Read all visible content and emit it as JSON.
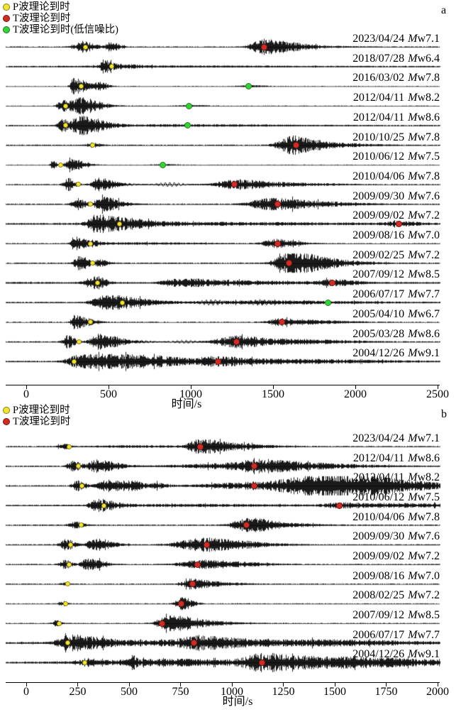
{
  "figure": {
    "background": "#ffffff",
    "waveform_color": "#000000",
    "p_marker_color": "#f5e32e",
    "mag_prefix_italic": "M",
    "mag_prefix_sub": "w"
  },
  "packet_format": "[center_time_s, width_s, amplitude_px, optional_decay_s]",
  "chart_data": [
    {
      "id": "a",
      "type": "line",
      "panel_letter": "a",
      "xlabel": "时间/s",
      "xlim": [
        0,
        2500
      ],
      "xticks": [
        0,
        500,
        1000,
        1500,
        2000,
        2500
      ],
      "grid": false,
      "legend_position": "top-left",
      "legend": [
        {
          "label": "P波理论到时",
          "color": "#f5e32e"
        },
        {
          "label": "T波理论到时",
          "color": "#d12b24"
        },
        {
          "label": "T波理论到时(低信噪比)",
          "color": "#35d435"
        }
      ],
      "traces": [
        {
          "label": "2023/04/24 Mw7.1",
          "date": "2023/04/24",
          "mw": "7.1",
          "p_s": 358,
          "t_s": 1448,
          "t_color": "#d12b24",
          "noise": 0.7,
          "packets": [
            [
              350,
              40,
              8
            ],
            [
              513,
              25,
              7
            ],
            [
              1444,
              55,
              10,
              120
            ],
            [
              1600,
              120,
              3
            ]
          ]
        },
        {
          "label": "2018/07/28 Mw6.4",
          "date": "2018/07/28",
          "mw": "6.4",
          "p_s": 521,
          "t_s": null,
          "t_color": null,
          "noise": 0.9,
          "packets": [
            [
              470,
              18,
              8
            ],
            [
              545,
              60,
              3
            ],
            [
              900,
              400,
              0.8
            ]
          ]
        },
        {
          "label": "2016/03/02 Mw7.8",
          "date": "2016/03/02",
          "mw": "7.8",
          "p_s": 332,
          "t_s": 1353,
          "t_color": "#35d435",
          "noise": 0.45,
          "packets": [
            [
              280,
              12,
              11,
              90
            ],
            [
              453,
              22,
              5
            ],
            [
              1353,
              45,
              1.2
            ]
          ]
        },
        {
          "label": "2012/04/11 Mw8.2",
          "date": "2012/04/11",
          "mw": "8.2",
          "p_s": 241,
          "t_s": 991,
          "t_color": "#35d435",
          "noise": 0.5,
          "packets": [
            [
              216,
              20,
              8
            ],
            [
              323,
              40,
              12,
              100
            ],
            [
              991,
              50,
              1
            ]
          ]
        },
        {
          "label": "2012/04/11 Mw8.6",
          "date": "2012/04/11",
          "mw": "8.6",
          "p_s": 241,
          "t_s": 982,
          "t_color": "#35d435",
          "noise": 0.8,
          "packets": [
            [
              216,
              20,
              8
            ],
            [
              328,
              45,
              13,
              120
            ],
            [
              950,
              350,
              1.2
            ]
          ]
        },
        {
          "label": "2010/10/25 Mw7.8",
          "date": "2010/10/25",
          "mw": "7.8",
          "p_s": 401,
          "t_s": 1642,
          "t_color": "#d12b24",
          "noise": 0.8,
          "packets": [
            [
              401,
              25,
              3
            ],
            [
              1543,
              40,
              4
            ],
            [
              1635,
              55,
              11,
              100
            ],
            [
              1830,
              120,
              3
            ]
          ]
        },
        {
          "label": "2010/06/12 Mw7.5",
          "date": "2010/06/12",
          "mw": "7.5",
          "p_s": 211,
          "t_s": 828,
          "t_color": "#35d435",
          "noise": 0.45,
          "packets": [
            [
              164,
              12,
              5
            ],
            [
              259,
              18,
              10,
              70
            ],
            [
              828,
              40,
              1
            ]
          ]
        },
        {
          "label": "2010/04/06 Mw7.8",
          "date": "2010/04/06",
          "mw": "7.8",
          "p_s": 315,
          "t_s": 1263,
          "t_color": "#d12b24",
          "noise": 0.7,
          "packets": [
            [
              250,
              22,
              9
            ],
            [
              437,
              30,
              9,
              80
            ],
            [
              1255,
              70,
              7,
              150
            ],
            [
              1600,
              150,
              2
            ]
          ],
          "rings": [
            [
              500,
              1150,
              2.5
            ]
          ]
        },
        {
          "label": "2009/09/30 Mw7.6",
          "date": "2009/09/30",
          "mw": "7.6",
          "p_s": 388,
          "t_s": 1530,
          "t_color": "#d12b24",
          "noise": 0.8,
          "packets": [
            [
              310,
              25,
              8
            ],
            [
              462,
              35,
              10,
              90
            ],
            [
              1480,
              90,
              8,
              150
            ],
            [
              1780,
              120,
              3
            ]
          ]
        },
        {
          "label": "2009/09/02 Mw7.2",
          "date": "2009/09/02",
          "mw": "7.2",
          "p_s": 565,
          "t_s": 2267,
          "t_color": "#d12b24",
          "noise": 1.1,
          "packets": [
            [
              414,
              35,
              12,
              200
            ],
            [
              1100,
              450,
              1.8
            ],
            [
              2267,
              60,
              3
            ]
          ]
        },
        {
          "label": "2009/08/16 Mw7.0",
          "date": "2009/08/16",
          "mw": "7.0",
          "p_s": 388,
          "t_s": 1530,
          "t_color": "#d12b24",
          "noise": 0.6,
          "packets": [
            [
              297,
              18,
              9,
              90
            ],
            [
              700,
              200,
              1.3
            ],
            [
              1515,
              55,
              6,
              110
            ]
          ]
        },
        {
          "label": "2009/02/25 Mw7.2",
          "date": "2009/02/25",
          "mw": "7.2",
          "p_s": 401,
          "t_s": 1599,
          "t_color": "#d12b24",
          "noise": 0.8,
          "packets": [
            [
              318,
              22,
              10,
              60
            ],
            [
              449,
              28,
              4
            ],
            [
              1560,
              50,
              7
            ],
            [
              1640,
              60,
              12,
              130
            ],
            [
              1850,
              110,
              4
            ]
          ]
        },
        {
          "label": "2007/09/12 Mw8.5",
          "date": "2007/09/12",
          "mw": "8.5",
          "p_s": 435,
          "t_s": 1858,
          "t_color": "#d12b24",
          "noise": 1.3,
          "packets": [
            [
              390,
              30,
              6
            ],
            [
              440,
              25,
              6
            ],
            [
              880,
              50,
              4
            ],
            [
              1035,
              70,
              4
            ],
            [
              1320,
              150,
              2.5
            ],
            [
              1865,
              70,
              4
            ]
          ]
        },
        {
          "label": "2006/07/17 Mw7.7",
          "date": "2006/07/17",
          "mw": "7.7",
          "p_s": 586,
          "t_s": 1832,
          "t_color": "#35d435",
          "noise": 1.0,
          "packets": [
            [
              470,
              50,
              9
            ],
            [
              595,
              55,
              6,
              150
            ],
            [
              1450,
              300,
              2
            ]
          ],
          "rings": [
            [
              750,
              1830,
              3.5
            ]
          ]
        },
        {
          "label": "2005/04/10 Mw6.7",
          "date": "2005/04/10",
          "mw": "6.7",
          "p_s": 392,
          "t_s": 1552,
          "t_color": "#d12b24",
          "noise": 0.6,
          "packets": [
            [
              289,
              14,
              10,
              80
            ],
            [
              1545,
              55,
              5,
              110
            ],
            [
              1780,
              110,
              2
            ]
          ]
        },
        {
          "label": "2005/03/28 Mw8.6",
          "date": "2005/03/28",
          "mw": "8.6",
          "p_s": 319,
          "t_s": 1276,
          "t_color": "#d12b24",
          "noise": 0.8,
          "packets": [
            [
              250,
              22,
              9
            ],
            [
              442,
              40,
              11,
              110
            ],
            [
              1275,
              90,
              8,
              160
            ],
            [
              1650,
              160,
              3
            ]
          ],
          "rings": [
            [
              600,
              1100,
              2.2
            ]
          ]
        },
        {
          "label": "2004/12/26 Mw9.1",
          "date": "2004/12/26",
          "mw": "9.1",
          "p_s": 293,
          "t_s": 1164,
          "t_color": "#d12b24",
          "noise": 1.1,
          "packets": [
            [
              300,
              40,
              6
            ],
            [
              480,
              100,
              10,
              220
            ],
            [
              820,
              130,
              4
            ],
            [
              1160,
              80,
              5
            ],
            [
              1550,
              260,
              3
            ]
          ]
        }
      ]
    },
    {
      "id": "b",
      "type": "line",
      "panel_letter": "b",
      "xlabel": "时间/s",
      "xlim": [
        0,
        2000
      ],
      "xticks": [
        0,
        250,
        500,
        750,
        1000,
        1250,
        1500,
        1750,
        2000
      ],
      "grid": false,
      "legend_position": "top-left",
      "legend": [
        {
          "label": "P波理论到时",
          "color": "#f5e32e"
        },
        {
          "label": "T波理论到时",
          "color": "#d12b24"
        }
      ],
      "traces": [
        {
          "label": "2023/04/24 Mw7.1",
          "date": "2023/04/24",
          "mw": "7.1",
          "p_s": 210,
          "t_s": 848,
          "t_color": "#d12b24",
          "noise": 0.8,
          "packets": [
            [
              175,
              15,
              4
            ],
            [
              520,
              160,
              1.2
            ],
            [
              845,
              45,
              9,
              90
            ],
            [
              1020,
              90,
              3
            ]
          ]
        },
        {
          "label": "2012/04/11 Mw8.6",
          "date": "2012/04/11",
          "mw": "8.6",
          "p_s": 252,
          "t_s": 1107,
          "t_color": "#d12b24",
          "noise": 0.8,
          "packets": [
            [
              225,
              20,
              7
            ],
            [
              345,
              35,
              9,
              80
            ],
            [
              1000,
              200,
              3.5
            ],
            [
              1125,
              70,
              5
            ],
            [
              1320,
              160,
              3
            ]
          ]
        },
        {
          "label": "2012/04/11 Mw8.2",
          "date": "2012/04/11",
          "mw": "8.2",
          "p_s": 272,
          "t_s": 1107,
          "t_color": "#d12b24",
          "noise": 0.9,
          "packets": [
            [
              250,
              20,
              7
            ],
            [
              392,
              35,
              8,
              80
            ],
            [
              525,
              35,
              5
            ],
            [
              645,
              25,
              3
            ],
            [
              1090,
              160,
              5
            ],
            [
              1360,
              100,
              8
            ],
            [
              1530,
              120,
              9
            ],
            [
              1750,
              160,
              6
            ]
          ]
        },
        {
          "label": "2010/06/12 Mw7.5",
          "date": "2010/06/12",
          "mw": "7.5",
          "p_s": 379,
          "t_s": 1521,
          "t_color": "#d12b24",
          "noise": 0.8,
          "packets": [
            [
              342,
              22,
              9,
              70
            ],
            [
              750,
              320,
              1.5
            ],
            [
              1521,
              55,
              2.5
            ],
            [
              1780,
              160,
              2.5
            ]
          ]
        },
        {
          "label": "2010/04/06 Mw7.8",
          "date": "2010/04/06",
          "mw": "7.8",
          "p_s": 266,
          "t_s": 1072,
          "t_color": "#d12b24",
          "noise": 0.8,
          "packets": [
            [
              237,
              20,
              5
            ],
            [
              1062,
              45,
              9,
              90
            ],
            [
              1210,
              90,
              3
            ]
          ]
        },
        {
          "label": "2009/09/30 Mw7.6",
          "date": "2009/09/30",
          "mw": "7.6",
          "p_s": 217,
          "t_s": 876,
          "t_color": "#d12b24",
          "noise": 0.8,
          "packets": [
            [
              192,
              20,
              8
            ],
            [
              332,
              28,
              9,
              70
            ],
            [
              845,
              85,
              9,
              130
            ],
            [
              1060,
              90,
              3
            ]
          ]
        },
        {
          "label": "2009/09/02 Mw7.2",
          "date": "2009/09/02",
          "mw": "7.2",
          "p_s": 210,
          "t_s": 834,
          "t_color": "#d12b24",
          "noise": 0.7,
          "packets": [
            [
              187,
              18,
              6
            ],
            [
              297,
              22,
              8,
              60
            ],
            [
              835,
              70,
              5,
              100
            ],
            [
              1000,
              90,
              3
            ]
          ]
        },
        {
          "label": "2009/08/16 Mw7.0",
          "date": "2009/08/16",
          "mw": "7.0",
          "p_s": 203,
          "t_s": 807,
          "t_color": "#d12b24",
          "noise": 0.65,
          "packets": [
            [
              182,
              12,
              2
            ],
            [
              800,
              30,
              7,
              70
            ],
            [
              930,
              70,
              2
            ]
          ]
        },
        {
          "label": "2008/02/25 Mw7.2",
          "date": "2008/02/25",
          "mw": "7.2",
          "p_s": 190,
          "t_s": 752,
          "t_color": "#d12b24",
          "noise": 0.6,
          "packets": [
            [
              168,
              12,
              3
            ],
            [
              757,
              22,
              10,
              40
            ]
          ]
        },
        {
          "label": "2007/09/12 Mw8.5",
          "date": "2007/09/12",
          "mw": "8.5",
          "p_s": 162,
          "t_s": 662,
          "t_color": "#d12b24",
          "noise": 0.6,
          "packets": [
            [
              142,
              12,
              4
            ],
            [
              700,
              42,
              11,
              95
            ],
            [
              860,
              85,
              3
            ]
          ]
        },
        {
          "label": "2006/07/17 Mw7.7",
          "date": "2006/07/17",
          "mw": "7.7",
          "p_s": 200,
          "t_s": 814,
          "t_color": "#d12b24",
          "noise": 1.0,
          "packets": [
            [
              200,
              35,
              10,
              130
            ],
            [
              560,
              260,
              3
            ],
            [
              835,
              70,
              6,
              130
            ],
            [
              1180,
              260,
              3
            ],
            [
              1580,
              210,
              2
            ]
          ]
        },
        {
          "label": "2004/12/26 Mw9.1",
          "date": "2004/12/26",
          "mw": "9.1",
          "p_s": 286,
          "t_s": 1145,
          "t_color": "#d12b24",
          "noise": 1.2,
          "packets": [
            [
              295,
              25,
              4
            ],
            [
              515,
              8,
              7
            ],
            [
              680,
              260,
              4.5
            ],
            [
              1142,
              60,
              9,
              130
            ],
            [
              1420,
              160,
              5
            ],
            [
              1730,
              210,
              4
            ]
          ]
        }
      ]
    }
  ]
}
